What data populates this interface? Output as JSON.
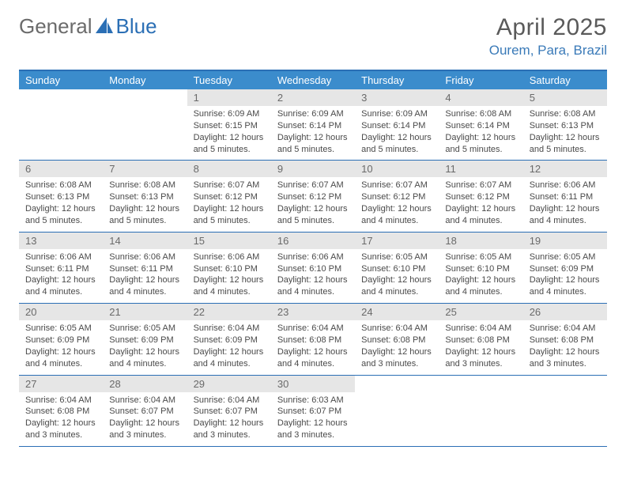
{
  "logo": {
    "part1": "General",
    "part2": "Blue"
  },
  "header": {
    "title": "April 2025",
    "location": "Ourem, Para, Brazil"
  },
  "colors": {
    "brand_blue": "#3b8ccc",
    "rule_blue": "#2b6fb5",
    "date_bg": "#e6e6e6",
    "text_gray": "#4a4a4a",
    "header_gray": "#5a5a5a"
  },
  "day_names": [
    "Sunday",
    "Monday",
    "Tuesday",
    "Wednesday",
    "Thursday",
    "Friday",
    "Saturday"
  ],
  "weeks": [
    [
      {
        "date": "",
        "sunrise": "",
        "sunset": "",
        "daylight": ""
      },
      {
        "date": "",
        "sunrise": "",
        "sunset": "",
        "daylight": ""
      },
      {
        "date": "1",
        "sunrise": "Sunrise: 6:09 AM",
        "sunset": "Sunset: 6:15 PM",
        "daylight": "Daylight: 12 hours and 5 minutes."
      },
      {
        "date": "2",
        "sunrise": "Sunrise: 6:09 AM",
        "sunset": "Sunset: 6:14 PM",
        "daylight": "Daylight: 12 hours and 5 minutes."
      },
      {
        "date": "3",
        "sunrise": "Sunrise: 6:09 AM",
        "sunset": "Sunset: 6:14 PM",
        "daylight": "Daylight: 12 hours and 5 minutes."
      },
      {
        "date": "4",
        "sunrise": "Sunrise: 6:08 AM",
        "sunset": "Sunset: 6:14 PM",
        "daylight": "Daylight: 12 hours and 5 minutes."
      },
      {
        "date": "5",
        "sunrise": "Sunrise: 6:08 AM",
        "sunset": "Sunset: 6:13 PM",
        "daylight": "Daylight: 12 hours and 5 minutes."
      }
    ],
    [
      {
        "date": "6",
        "sunrise": "Sunrise: 6:08 AM",
        "sunset": "Sunset: 6:13 PM",
        "daylight": "Daylight: 12 hours and 5 minutes."
      },
      {
        "date": "7",
        "sunrise": "Sunrise: 6:08 AM",
        "sunset": "Sunset: 6:13 PM",
        "daylight": "Daylight: 12 hours and 5 minutes."
      },
      {
        "date": "8",
        "sunrise": "Sunrise: 6:07 AM",
        "sunset": "Sunset: 6:12 PM",
        "daylight": "Daylight: 12 hours and 5 minutes."
      },
      {
        "date": "9",
        "sunrise": "Sunrise: 6:07 AM",
        "sunset": "Sunset: 6:12 PM",
        "daylight": "Daylight: 12 hours and 5 minutes."
      },
      {
        "date": "10",
        "sunrise": "Sunrise: 6:07 AM",
        "sunset": "Sunset: 6:12 PM",
        "daylight": "Daylight: 12 hours and 4 minutes."
      },
      {
        "date": "11",
        "sunrise": "Sunrise: 6:07 AM",
        "sunset": "Sunset: 6:12 PM",
        "daylight": "Daylight: 12 hours and 4 minutes."
      },
      {
        "date": "12",
        "sunrise": "Sunrise: 6:06 AM",
        "sunset": "Sunset: 6:11 PM",
        "daylight": "Daylight: 12 hours and 4 minutes."
      }
    ],
    [
      {
        "date": "13",
        "sunrise": "Sunrise: 6:06 AM",
        "sunset": "Sunset: 6:11 PM",
        "daylight": "Daylight: 12 hours and 4 minutes."
      },
      {
        "date": "14",
        "sunrise": "Sunrise: 6:06 AM",
        "sunset": "Sunset: 6:11 PM",
        "daylight": "Daylight: 12 hours and 4 minutes."
      },
      {
        "date": "15",
        "sunrise": "Sunrise: 6:06 AM",
        "sunset": "Sunset: 6:10 PM",
        "daylight": "Daylight: 12 hours and 4 minutes."
      },
      {
        "date": "16",
        "sunrise": "Sunrise: 6:06 AM",
        "sunset": "Sunset: 6:10 PM",
        "daylight": "Daylight: 12 hours and 4 minutes."
      },
      {
        "date": "17",
        "sunrise": "Sunrise: 6:05 AM",
        "sunset": "Sunset: 6:10 PM",
        "daylight": "Daylight: 12 hours and 4 minutes."
      },
      {
        "date": "18",
        "sunrise": "Sunrise: 6:05 AM",
        "sunset": "Sunset: 6:10 PM",
        "daylight": "Daylight: 12 hours and 4 minutes."
      },
      {
        "date": "19",
        "sunrise": "Sunrise: 6:05 AM",
        "sunset": "Sunset: 6:09 PM",
        "daylight": "Daylight: 12 hours and 4 minutes."
      }
    ],
    [
      {
        "date": "20",
        "sunrise": "Sunrise: 6:05 AM",
        "sunset": "Sunset: 6:09 PM",
        "daylight": "Daylight: 12 hours and 4 minutes."
      },
      {
        "date": "21",
        "sunrise": "Sunrise: 6:05 AM",
        "sunset": "Sunset: 6:09 PM",
        "daylight": "Daylight: 12 hours and 4 minutes."
      },
      {
        "date": "22",
        "sunrise": "Sunrise: 6:04 AM",
        "sunset": "Sunset: 6:09 PM",
        "daylight": "Daylight: 12 hours and 4 minutes."
      },
      {
        "date": "23",
        "sunrise": "Sunrise: 6:04 AM",
        "sunset": "Sunset: 6:08 PM",
        "daylight": "Daylight: 12 hours and 4 minutes."
      },
      {
        "date": "24",
        "sunrise": "Sunrise: 6:04 AM",
        "sunset": "Sunset: 6:08 PM",
        "daylight": "Daylight: 12 hours and 3 minutes."
      },
      {
        "date": "25",
        "sunrise": "Sunrise: 6:04 AM",
        "sunset": "Sunset: 6:08 PM",
        "daylight": "Daylight: 12 hours and 3 minutes."
      },
      {
        "date": "26",
        "sunrise": "Sunrise: 6:04 AM",
        "sunset": "Sunset: 6:08 PM",
        "daylight": "Daylight: 12 hours and 3 minutes."
      }
    ],
    [
      {
        "date": "27",
        "sunrise": "Sunrise: 6:04 AM",
        "sunset": "Sunset: 6:08 PM",
        "daylight": "Daylight: 12 hours and 3 minutes."
      },
      {
        "date": "28",
        "sunrise": "Sunrise: 6:04 AM",
        "sunset": "Sunset: 6:07 PM",
        "daylight": "Daylight: 12 hours and 3 minutes."
      },
      {
        "date": "29",
        "sunrise": "Sunrise: 6:04 AM",
        "sunset": "Sunset: 6:07 PM",
        "daylight": "Daylight: 12 hours and 3 minutes."
      },
      {
        "date": "30",
        "sunrise": "Sunrise: 6:03 AM",
        "sunset": "Sunset: 6:07 PM",
        "daylight": "Daylight: 12 hours and 3 minutes."
      },
      {
        "date": "",
        "sunrise": "",
        "sunset": "",
        "daylight": ""
      },
      {
        "date": "",
        "sunrise": "",
        "sunset": "",
        "daylight": ""
      },
      {
        "date": "",
        "sunrise": "",
        "sunset": "",
        "daylight": ""
      }
    ]
  ]
}
